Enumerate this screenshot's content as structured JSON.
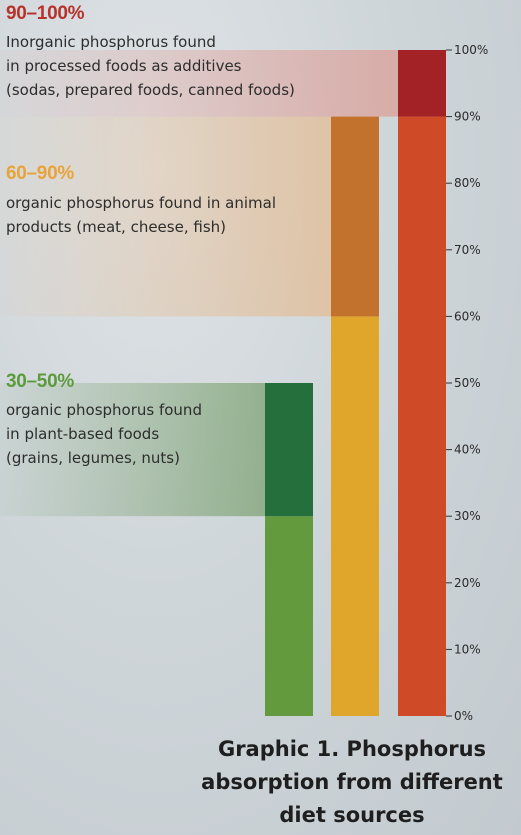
{
  "chart_data": {
    "type": "bar",
    "subtype": "stacked-range",
    "title_lines": [
      "Graphic 1. Phosphorus",
      "absorption from different",
      "diet sources"
    ],
    "y_ticks": [
      "0%",
      "10%",
      "20%",
      "30%",
      "40%",
      "50%",
      "60%",
      "70%",
      "80%",
      "90%",
      "100%"
    ],
    "ylim": [
      0,
      100
    ],
    "y_unit": "%",
    "grid": false,
    "series": [
      {
        "id": "plant",
        "range_label": "30–50%",
        "description": [
          "organic phosphorus found",
          "in plant-based foods",
          "(grains, legumes, nuts)"
        ],
        "min": 30,
        "max": 50,
        "color_base": "#639a3e",
        "color_range": "#256f3d",
        "color_text": "#5c9a3b",
        "color_band": "#5f8f4e"
      },
      {
        "id": "animal",
        "range_label": "60–90%",
        "description": [
          "organic phosphorus found in animal",
          "products (meat, cheese, fish)"
        ],
        "min": 60,
        "max": 90,
        "color_base": "#e0a52b",
        "color_range": "#c3722d",
        "color_text": "#e8a33a",
        "color_band": "#e9b27a"
      },
      {
        "id": "processed",
        "range_label": "90–100%",
        "description": [
          "Inorganic phosphorus found",
          "in processed foods as additives",
          "(sodas, prepared foods, canned foods)"
        ],
        "min": 90,
        "max": 100,
        "color_base": "#cf4b28",
        "color_range": "#a32226",
        "color_text": "#b7322a",
        "color_band": "#e08a7e"
      }
    ]
  }
}
